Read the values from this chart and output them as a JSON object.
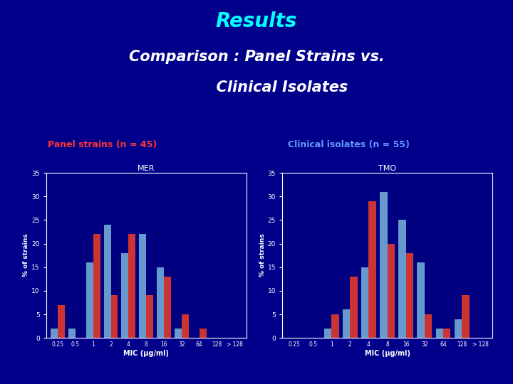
{
  "bg_color": "#00008B",
  "title_results": "Results",
  "title_results_color": "#00FFFF",
  "subtitle_line1": "Comparison : Panel Strains vs.",
  "subtitle_line2": "          Clinical Isolates",
  "subtitle_color": "#FFFFFF",
  "label_left": "Panel strains (n = 45)",
  "label_right": "Clinical isolates (n = 55)",
  "label_left_color": "#FF3333",
  "label_right_color": "#6699FF",
  "chart_left_title": "MER",
  "chart_right_title": "TMO",
  "mic_labels_left": [
    "0.25",
    "0.5",
    "1",
    "2",
    "4",
    "8",
    "16",
    "32",
    "64",
    "128",
    "> 128"
  ],
  "mic_labels_right": [
    "0.25",
    "0.5",
    "1",
    "2",
    "4",
    "8",
    "16",
    "32",
    "64",
    "128",
    "> 128"
  ],
  "mer_blue": [
    2,
    2,
    16,
    24,
    18,
    22,
    15,
    2,
    0,
    0,
    0
  ],
  "mer_red": [
    7,
    0,
    22,
    9,
    22,
    9,
    13,
    5,
    2,
    0,
    0
  ],
  "tmo_blue": [
    0,
    0,
    2,
    6,
    15,
    31,
    25,
    16,
    2,
    4,
    0
  ],
  "tmo_red": [
    0,
    0,
    5,
    13,
    29,
    20,
    18,
    5,
    2,
    9,
    0
  ],
  "bar_blue": "#6699CC",
  "bar_red": "#CC3333",
  "ylabel": "% of strains",
  "xlabel": "MIC (μg/ml)",
  "ylim": [
    0,
    35
  ],
  "yticks": [
    0,
    5,
    10,
    15,
    20,
    25,
    30,
    35
  ],
  "chart_bg": "#000080",
  "chart_border_color": "#FFFFFF"
}
